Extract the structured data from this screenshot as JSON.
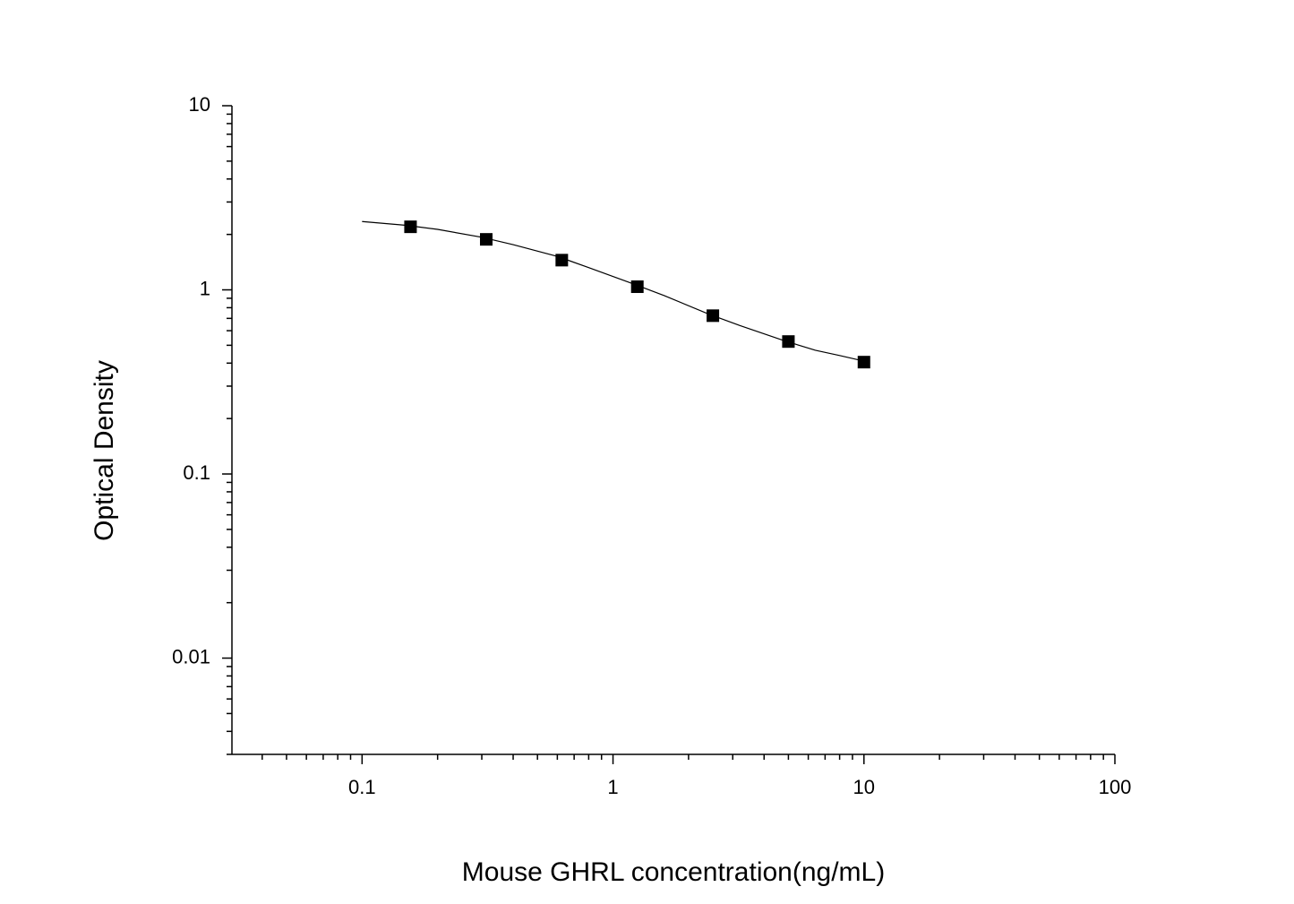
{
  "chart_data": {
    "type": "scatter",
    "x_label": "Mouse GHRL concentration(ng/mL)",
    "y_label": "Optical Density",
    "x": [
      0.156,
      0.3125,
      0.625,
      1.25,
      2.5,
      5,
      10
    ],
    "values": [
      2.2,
      1.88,
      1.45,
      1.04,
      0.724,
      0.524,
      0.405
    ],
    "color": "#000000",
    "curve": {
      "x": [
        0.1,
        0.15,
        0.2,
        0.3,
        0.4,
        0.6,
        0.8,
        1.2,
        1.6,
        2.4,
        3.2,
        4.8,
        6.4,
        8,
        10
      ],
      "values": [
        2.35,
        2.24,
        2.13,
        1.93,
        1.76,
        1.52,
        1.32,
        1.08,
        0.93,
        0.74,
        0.64,
        0.53,
        0.47,
        0.44,
        0.41
      ]
    },
    "xlim": [
      0.0303,
      100
    ],
    "ylim": [
      0.003,
      10
    ],
    "xticks": [
      0.1,
      1,
      10,
      100
    ],
    "yticks": [
      0.01,
      0.1,
      1,
      10
    ],
    "xscale": "log",
    "yscale": "log",
    "minor_ticks": true
  }
}
